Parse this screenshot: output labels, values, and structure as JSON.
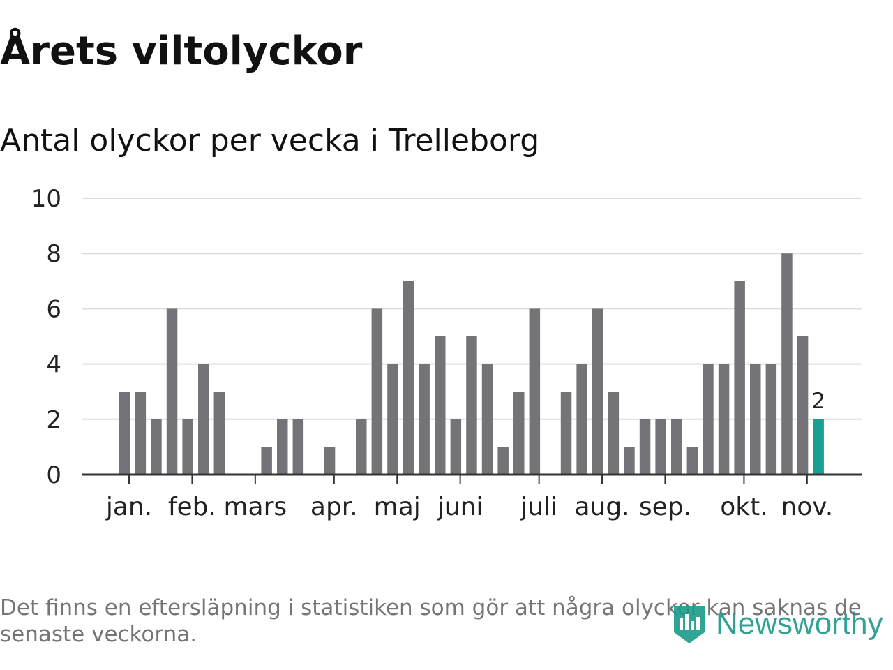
{
  "header": {
    "title": "Årets viltolyckor"
  },
  "footer": {
    "note": "Det finns en eftersläpning i statistiken som gör att några olyckor kan saknas de senaste veckorna.",
    "brand": "Newsworthy"
  },
  "colors": {
    "bar": "#737378",
    "highlight": "#1aa090",
    "grid": "#dddddd",
    "axis": "#333333",
    "brand": "#1a9a8a"
  },
  "chart_data": {
    "type": "bar",
    "title": "Antal olyckor per vecka i Trelleborg",
    "xlabel": "",
    "ylabel": "",
    "ylim": [
      0,
      10
    ],
    "yticks": [
      0,
      2,
      4,
      6,
      8,
      10
    ],
    "grid": true,
    "unit": "veckor",
    "values": [
      3,
      3,
      2,
      6,
      2,
      4,
      3,
      0,
      0,
      1,
      2,
      2,
      0,
      1,
      0,
      2,
      6,
      4,
      7,
      4,
      5,
      2,
      5,
      4,
      1,
      3,
      6,
      0,
      3,
      4,
      6,
      3,
      1,
      2,
      2,
      2,
      1,
      4,
      4,
      7,
      4,
      4,
      8,
      5,
      2
    ],
    "highlight_index": 44,
    "highlight_label": "2",
    "month_ticks": [
      {
        "label": "jan.",
        "week": 0.3
      },
      {
        "label": "feb.",
        "week": 4.3
      },
      {
        "label": "mars",
        "week": 8.3
      },
      {
        "label": "apr.",
        "week": 13.3
      },
      {
        "label": "maj",
        "week": 17.3
      },
      {
        "label": "juni",
        "week": 21.3
      },
      {
        "label": "juli",
        "week": 26.3
      },
      {
        "label": "aug.",
        "week": 30.3
      },
      {
        "label": "sep.",
        "week": 34.3
      },
      {
        "label": "okt.",
        "week": 39.3
      },
      {
        "label": "nov.",
        "week": 43.3
      }
    ]
  }
}
